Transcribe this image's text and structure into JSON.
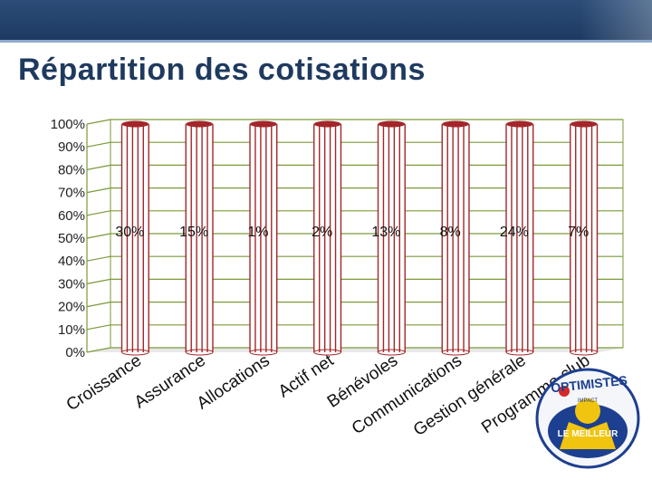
{
  "slide": {
    "title": "Répartition des cotisations"
  },
  "chart_data": {
    "type": "bar",
    "title": "Répartition des cotisations",
    "categories": [
      "Croissance",
      "Assurance",
      "Allocations",
      "Actif net",
      "Bénévoles",
      "Communications",
      "Gestion générale",
      "Programme club"
    ],
    "values": [
      30,
      15,
      1,
      2,
      13,
      8,
      24,
      7
    ],
    "value_labels": [
      "30%",
      "15%",
      "1%",
      "2%",
      "13%",
      "8%",
      "24%",
      "7%"
    ],
    "stacked_100_percent": true,
    "y_tick_labels": [
      "0%",
      "10%",
      "20%",
      "30%",
      "40%",
      "50%",
      "60%",
      "70%",
      "80%",
      "90%",
      "100%"
    ],
    "ylim": [
      0,
      100
    ],
    "grid": true,
    "bar_color": "#a3262a",
    "xlabel": "",
    "ylabel": ""
  },
  "logo": {
    "name": "OPTIMISTES",
    "subtitle": "IMPACT",
    "badge": "LE MEILLEUR"
  },
  "colors": {
    "header_bar": "#1d3a62",
    "title_text": "#1f3a5f",
    "bar": "#a3262a",
    "grid": "#7a9a3a",
    "chart_floor": "#e8e8e8"
  }
}
